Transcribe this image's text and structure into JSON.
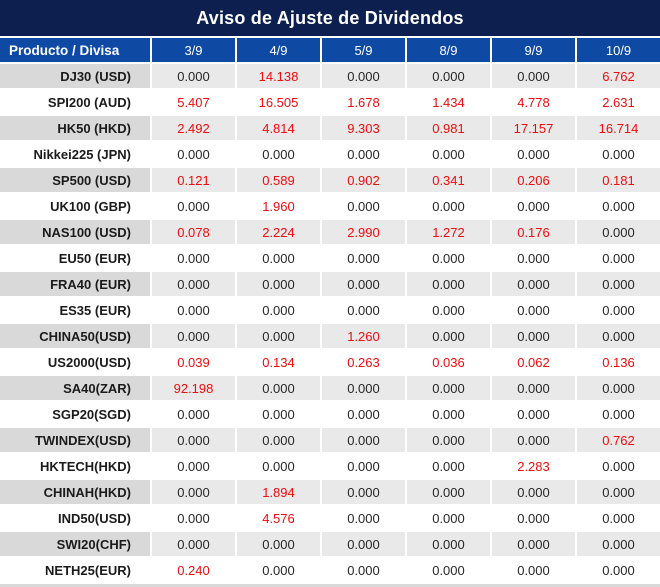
{
  "chart_data": {
    "type": "table",
    "title": "Aviso de Ajuste de Dividendos",
    "product_header": "Producto / Divisa",
    "date_columns": [
      "3/9",
      "4/9",
      "5/9",
      "8/9",
      "9/9",
      "10/9"
    ],
    "rows": [
      {
        "product": "DJ30 (USD)",
        "values": [
          "0.000",
          "14.138",
          "0.000",
          "0.000",
          "0.000",
          "6.762"
        ]
      },
      {
        "product": "SPI200 (AUD)",
        "values": [
          "5.407",
          "16.505",
          "1.678",
          "1.434",
          "4.778",
          "2.631"
        ]
      },
      {
        "product": "HK50 (HKD)",
        "values": [
          "2.492",
          "4.814",
          "9.303",
          "0.981",
          "17.157",
          "16.714"
        ]
      },
      {
        "product": "Nikkei225 (JPN)",
        "values": [
          "0.000",
          "0.000",
          "0.000",
          "0.000",
          "0.000",
          "0.000"
        ]
      },
      {
        "product": "SP500 (USD)",
        "values": [
          "0.121",
          "0.589",
          "0.902",
          "0.341",
          "0.206",
          "0.181"
        ]
      },
      {
        "product": "UK100 (GBP)",
        "values": [
          "0.000",
          "1.960",
          "0.000",
          "0.000",
          "0.000",
          "0.000"
        ]
      },
      {
        "product": "NAS100 (USD)",
        "values": [
          "0.078",
          "2.224",
          "2.990",
          "1.272",
          "0.176",
          "0.000"
        ]
      },
      {
        "product": "EU50 (EUR)",
        "values": [
          "0.000",
          "0.000",
          "0.000",
          "0.000",
          "0.000",
          "0.000"
        ]
      },
      {
        "product": "FRA40 (EUR)",
        "values": [
          "0.000",
          "0.000",
          "0.000",
          "0.000",
          "0.000",
          "0.000"
        ]
      },
      {
        "product": "ES35 (EUR)",
        "values": [
          "0.000",
          "0.000",
          "0.000",
          "0.000",
          "0.000",
          "0.000"
        ]
      },
      {
        "product": "CHINA50(USD)",
        "values": [
          "0.000",
          "0.000",
          "1.260",
          "0.000",
          "0.000",
          "0.000"
        ]
      },
      {
        "product": "US2000(USD)",
        "values": [
          "0.039",
          "0.134",
          "0.263",
          "0.036",
          "0.062",
          "0.136"
        ]
      },
      {
        "product": "SA40(ZAR)",
        "values": [
          "92.198",
          "0.000",
          "0.000",
          "0.000",
          "0.000",
          "0.000"
        ]
      },
      {
        "product": "SGP20(SGD)",
        "values": [
          "0.000",
          "0.000",
          "0.000",
          "0.000",
          "0.000",
          "0.000"
        ]
      },
      {
        "product": "TWINDEX(USD)",
        "values": [
          "0.000",
          "0.000",
          "0.000",
          "0.000",
          "0.000",
          "0.762"
        ]
      },
      {
        "product": "HKTECH(HKD)",
        "values": [
          "0.000",
          "0.000",
          "0.000",
          "0.000",
          "2.283",
          "0.000"
        ]
      },
      {
        "product": "CHINAH(HKD)",
        "values": [
          "0.000",
          "1.894",
          "0.000",
          "0.000",
          "0.000",
          "0.000"
        ]
      },
      {
        "product": "IND50(USD)",
        "values": [
          "0.000",
          "4.576",
          "0.000",
          "0.000",
          "0.000",
          "0.000"
        ]
      },
      {
        "product": "SWI20(CHF)",
        "values": [
          "0.000",
          "0.000",
          "0.000",
          "0.000",
          "0.000",
          "0.000"
        ]
      },
      {
        "product": "NETH25(EUR)",
        "values": [
          "0.240",
          "0.000",
          "0.000",
          "0.000",
          "0.000",
          "0.000"
        ]
      }
    ],
    "layout_hints": {
      "zero_value_color": "#272727",
      "nonzero_value_color": "#ee0c0c",
      "title_bg": "#0c1f4e",
      "header_bg": "#0e4aa3",
      "alt_row_bg": "#e9e9e9",
      "alt_row_product_bg": "#d9d9d9"
    }
  }
}
